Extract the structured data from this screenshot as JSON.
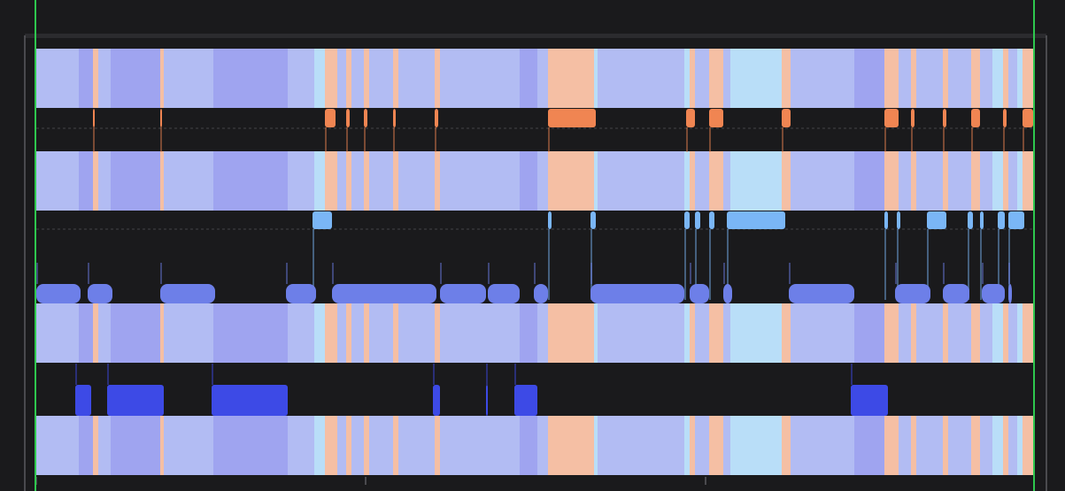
{
  "chart_data": {
    "type": "area",
    "title": "",
    "xlabel": "",
    "ylabel": "",
    "xlim": [
      0,
      1127
    ],
    "grid": false,
    "legend": "none",
    "colors": {
      "background": "#1a1a1c",
      "divider": "#6d7fe8",
      "bright_blue": "#3d4ae6",
      "light_blue": "#7ab6f6",
      "orange": "#f08552",
      "boundary": "#2ec74e",
      "frame": "#5a5a5e"
    },
    "category_palette": {
      "A": "#b2bcf3",
      "B": "#9fa4f0",
      "C": "#b9def8",
      "D": "#f5bfa4"
    },
    "state_segments": [
      {
        "x0": 0,
        "x1": 48,
        "state": "A"
      },
      {
        "x0": 48,
        "x1": 64,
        "state": "B"
      },
      {
        "x0": 64,
        "x1": 70,
        "state": "D"
      },
      {
        "x0": 70,
        "x1": 84,
        "state": "A"
      },
      {
        "x0": 84,
        "x1": 140,
        "state": "B"
      },
      {
        "x0": 140,
        "x1": 144,
        "state": "D"
      },
      {
        "x0": 144,
        "x1": 200,
        "state": "A"
      },
      {
        "x0": 200,
        "x1": 284,
        "state": "B"
      },
      {
        "x0": 284,
        "x1": 314,
        "state": "A"
      },
      {
        "x0": 314,
        "x1": 326,
        "state": "C"
      },
      {
        "x0": 326,
        "x1": 340,
        "state": "D"
      },
      {
        "x0": 340,
        "x1": 350,
        "state": "A"
      },
      {
        "x0": 350,
        "x1": 356,
        "state": "D"
      },
      {
        "x0": 356,
        "x1": 370,
        "state": "A"
      },
      {
        "x0": 370,
        "x1": 376,
        "state": "D"
      },
      {
        "x0": 376,
        "x1": 403,
        "state": "A"
      },
      {
        "x0": 403,
        "x1": 409,
        "state": "D"
      },
      {
        "x0": 409,
        "x1": 450,
        "state": "A"
      },
      {
        "x0": 450,
        "x1": 456,
        "state": "D"
      },
      {
        "x0": 456,
        "x1": 510,
        "state": "A"
      },
      {
        "x0": 510,
        "x1": 546,
        "state": "A"
      },
      {
        "x0": 546,
        "x1": 566,
        "state": "B"
      },
      {
        "x0": 566,
        "x1": 578,
        "state": "A"
      },
      {
        "x0": 578,
        "x1": 630,
        "state": "D"
      },
      {
        "x0": 630,
        "x1": 634,
        "state": "C"
      },
      {
        "x0": 634,
        "x1": 732,
        "state": "A"
      },
      {
        "x0": 732,
        "x1": 738,
        "state": "C"
      },
      {
        "x0": 738,
        "x1": 744,
        "state": "D"
      },
      {
        "x0": 744,
        "x1": 760,
        "state": "A"
      },
      {
        "x0": 760,
        "x1": 776,
        "state": "D"
      },
      {
        "x0": 776,
        "x1": 784,
        "state": "A"
      },
      {
        "x0": 784,
        "x1": 842,
        "state": "C"
      },
      {
        "x0": 842,
        "x1": 852,
        "state": "D"
      },
      {
        "x0": 852,
        "x1": 924,
        "state": "A"
      },
      {
        "x0": 924,
        "x1": 958,
        "state": "B"
      },
      {
        "x0": 958,
        "x1": 974,
        "state": "D"
      },
      {
        "x0": 974,
        "x1": 988,
        "state": "A"
      },
      {
        "x0": 988,
        "x1": 994,
        "state": "D"
      },
      {
        "x0": 994,
        "x1": 1024,
        "state": "A"
      },
      {
        "x0": 1024,
        "x1": 1030,
        "state": "D"
      },
      {
        "x0": 1030,
        "x1": 1056,
        "state": "A"
      },
      {
        "x0": 1056,
        "x1": 1066,
        "state": "D"
      },
      {
        "x0": 1066,
        "x1": 1080,
        "state": "A"
      },
      {
        "x0": 1080,
        "x1": 1092,
        "state": "C"
      },
      {
        "x0": 1092,
        "x1": 1098,
        "state": "D"
      },
      {
        "x0": 1098,
        "x1": 1108,
        "state": "A"
      },
      {
        "x0": 1108,
        "x1": 1114,
        "state": "C"
      },
      {
        "x0": 1114,
        "x1": 1127,
        "state": "D"
      }
    ],
    "event_tracks": [
      {
        "color": "orange",
        "level": "high",
        "events": [
          [
            64,
            66
          ],
          [
            140,
            142
          ],
          [
            326,
            338
          ],
          [
            350,
            354
          ],
          [
            370,
            374
          ],
          [
            403,
            406
          ],
          [
            450,
            454
          ],
          [
            578,
            632
          ],
          [
            734,
            744
          ],
          [
            760,
            776
          ],
          [
            842,
            852
          ],
          [
            958,
            974
          ],
          [
            988,
            992
          ],
          [
            1024,
            1028
          ],
          [
            1056,
            1066
          ],
          [
            1092,
            1096
          ],
          [
            1114,
            1126
          ]
        ]
      },
      {
        "color": "light_blue",
        "level": "high",
        "events": [
          [
            312,
            334
          ],
          [
            578,
            582
          ],
          [
            626,
            632
          ],
          [
            732,
            738
          ],
          [
            744,
            750
          ],
          [
            760,
            766
          ],
          [
            780,
            846
          ],
          [
            958,
            962
          ],
          [
            972,
            976
          ],
          [
            1006,
            1028
          ],
          [
            1052,
            1058
          ],
          [
            1066,
            1070
          ],
          [
            1086,
            1094
          ],
          [
            1098,
            1116
          ]
        ]
      },
      {
        "color": "divider",
        "level": "low",
        "events": [
          [
            0,
            50
          ],
          [
            58,
            86
          ],
          [
            140,
            202
          ],
          [
            282,
            316
          ],
          [
            334,
            452
          ],
          [
            456,
            508
          ],
          [
            510,
            546
          ],
          [
            562,
            578
          ],
          [
            626,
            732
          ],
          [
            738,
            760
          ],
          [
            776,
            786
          ],
          [
            850,
            924
          ],
          [
            970,
            1010
          ],
          [
            1024,
            1054
          ],
          [
            1068,
            1094
          ],
          [
            1098,
            1102
          ]
        ]
      },
      {
        "color": "bright_blue",
        "level": "low",
        "events": [
          [
            44,
            62
          ],
          [
            80,
            144
          ],
          [
            198,
            284
          ],
          [
            448,
            456
          ],
          [
            508,
            510
          ],
          [
            540,
            566
          ],
          [
            920,
            962
          ]
        ]
      }
    ]
  }
}
